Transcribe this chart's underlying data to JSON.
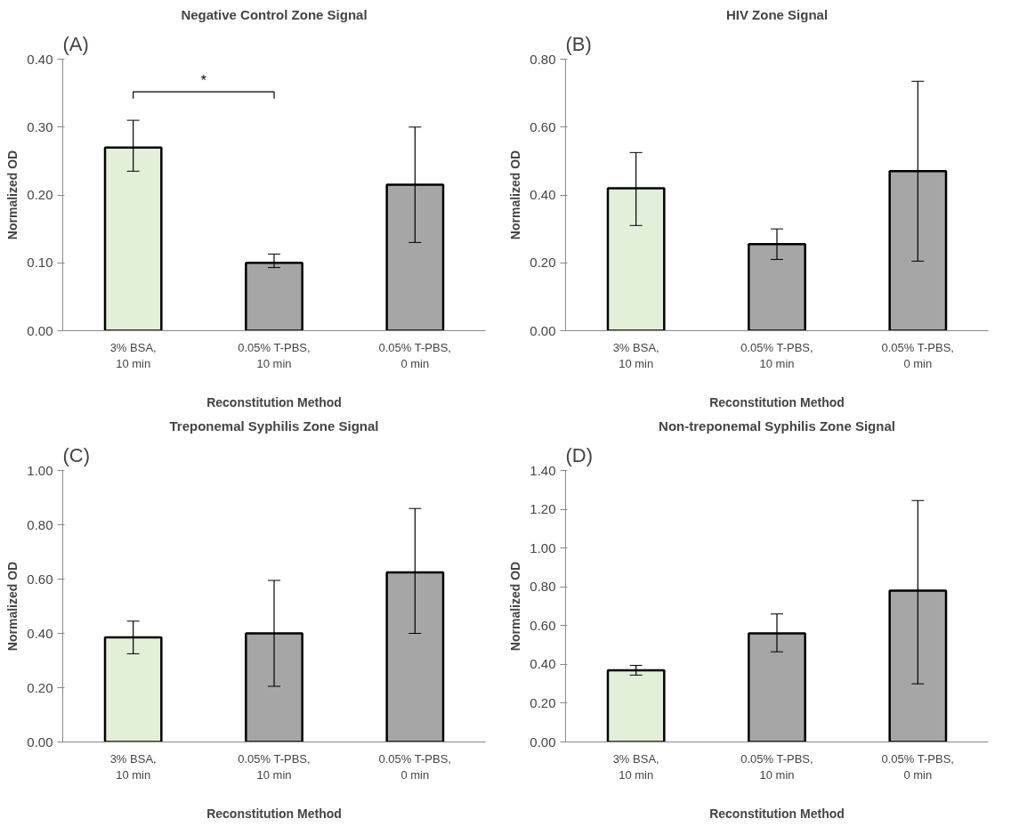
{
  "chart_data": [
    {
      "type": "bar",
      "title": "Negative Control Zone Signal",
      "xlabel": "Reconstitution Method",
      "ylabel": "Normalized OD",
      "annotations": [
        "(A)",
        "*"
      ],
      "categories": [
        "3% BSA, 10 min",
        "0.05% T-PBS, 10 min",
        "0.05% T-PBS, 0 min"
      ],
      "values": [
        0.27,
        0.1,
        0.215
      ],
      "colors": [
        "#e2efd9",
        "#a6a6a6",
        "#a6a6a6"
      ],
      "errors": [
        [
          0.235,
          0.31
        ],
        [
          0.093,
          0.113
        ],
        [
          0.13,
          0.3
        ]
      ],
      "ylim": [
        0,
        0.4
      ],
      "yticks": [
        {
          "value": 0,
          "label": "0.00"
        },
        {
          "value": 0.1,
          "label": "0.10"
        },
        {
          "value": 0.2,
          "label": "0.20"
        },
        {
          "value": 0.3,
          "label": "0.30"
        },
        {
          "value": 0.4,
          "label": "0.40"
        }
      ],
      "grid": false
    },
    {
      "type": "bar",
      "title": "HIV Zone Signal",
      "xlabel": "Reconstitution Method",
      "ylabel": "Normalized OD",
      "annotations": [
        "(B)"
      ],
      "categories": [
        "3% BSA, 10 min",
        "0.05% T-PBS, 10 min",
        "0.05% T-PBS, 0 min"
      ],
      "values": [
        0.42,
        0.255,
        0.47
      ],
      "colors": [
        "#e2efd9",
        "#a6a6a6",
        "#a6a6a6"
      ],
      "errors": [
        [
          0.31,
          0.525
        ],
        [
          0.21,
          0.3
        ],
        [
          0.205,
          0.735
        ]
      ],
      "ylim": [
        0,
        0.8
      ],
      "yticks": [
        {
          "value": 0,
          "label": "0.00"
        },
        {
          "value": 0.2,
          "label": "0.20"
        },
        {
          "value": 0.4,
          "label": "0.40"
        },
        {
          "value": 0.6,
          "label": "0.60"
        },
        {
          "value": 0.8,
          "label": "0.80"
        }
      ],
      "grid": false
    },
    {
      "type": "bar",
      "title": "Treponemal Syphilis Zone Signal",
      "xlabel": "Reconstitution Method",
      "ylabel": "Normalized OD",
      "annotations": [
        "(C)"
      ],
      "categories": [
        "3% BSA, 10 min",
        "0.05% T-PBS, 10 min",
        "0.05% T-PBS, 0 min"
      ],
      "values": [
        0.385,
        0.4,
        0.625
      ],
      "colors": [
        "#e2efd9",
        "#a6a6a6",
        "#a6a6a6"
      ],
      "errors": [
        [
          0.325,
          0.445
        ],
        [
          0.205,
          0.595
        ],
        [
          0.4,
          0.86
        ]
      ],
      "ylim": [
        0,
        1.0
      ],
      "yticks": [
        {
          "value": 0,
          "label": "0.00"
        },
        {
          "value": 0.2,
          "label": "0.20"
        },
        {
          "value": 0.4,
          "label": "0.40"
        },
        {
          "value": 0.6,
          "label": "0.60"
        },
        {
          "value": 0.8,
          "label": "0.80"
        },
        {
          "value": 1.0,
          "label": "1.00"
        }
      ],
      "grid": false
    },
    {
      "type": "bar",
      "title": "Non-treponemal Syphilis Zone Signal",
      "xlabel": "Reconstitution Method",
      "ylabel": "Normalized OD",
      "annotations": [
        "(D)"
      ],
      "categories": [
        "3% BSA, 10 min",
        "0.05% T-PBS, 10 min",
        "0.05% T-PBS, 0 min"
      ],
      "values": [
        0.37,
        0.56,
        0.78
      ],
      "colors": [
        "#e2efd9",
        "#a6a6a6",
        "#a6a6a6"
      ],
      "errors": [
        [
          0.345,
          0.395
        ],
        [
          0.465,
          0.66
        ],
        [
          0.3,
          1.245
        ]
      ],
      "ylim": [
        0,
        1.4
      ],
      "yticks": [
        {
          "value": 0,
          "label": "0.00"
        },
        {
          "value": 0.2,
          "label": "0.20"
        },
        {
          "value": 0.4,
          "label": "0.40"
        },
        {
          "value": 0.6,
          "label": "0.60"
        },
        {
          "value": 0.8,
          "label": "0.80"
        },
        {
          "value": 1.0,
          "label": "1.00"
        },
        {
          "value": 1.2,
          "label": "1.20"
        },
        {
          "value": 1.4,
          "label": "1.40"
        }
      ],
      "grid": false
    }
  ]
}
